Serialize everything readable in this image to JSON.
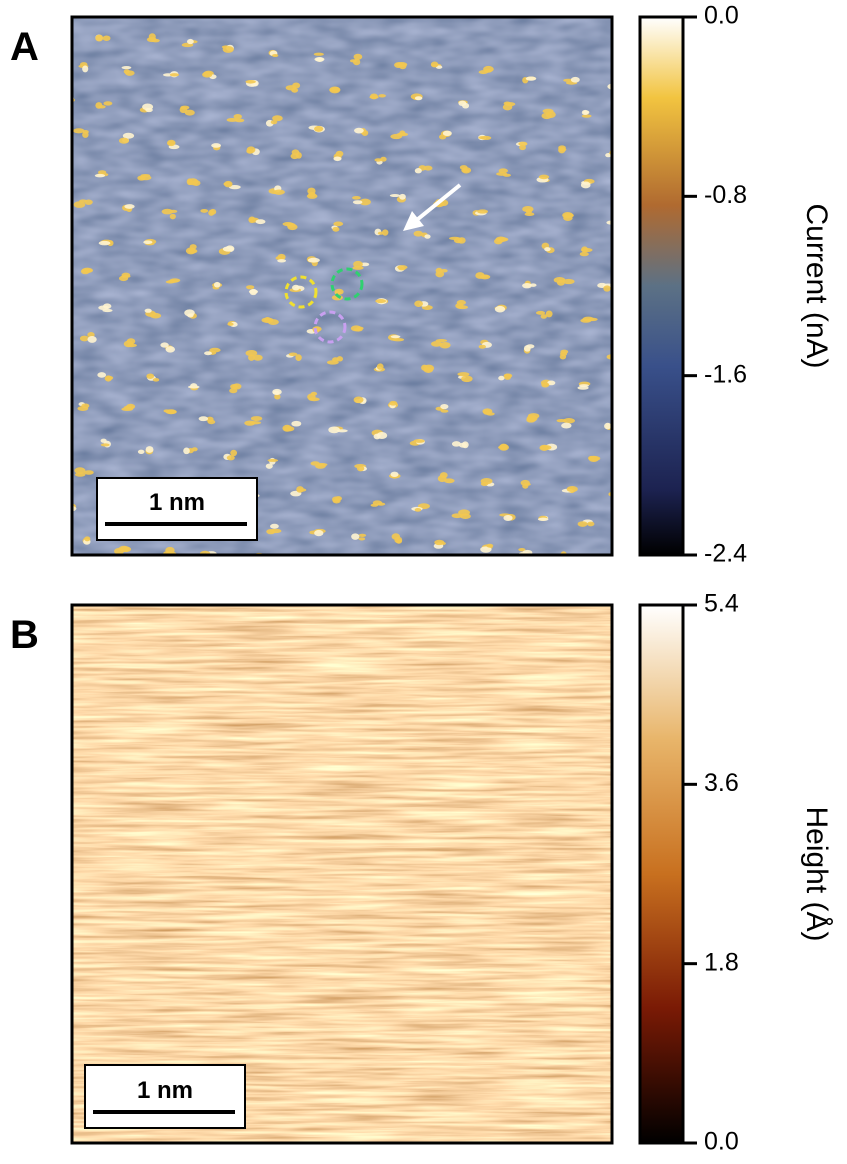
{
  "panels": [
    {
      "label": "A",
      "scale_bar": "1 nm",
      "colorbar": {
        "title": "Current (nA)",
        "lim": [
          -2.4,
          0.0
        ],
        "ticks": [
          {
            "value": 0.0,
            "label": "0.0"
          },
          {
            "value": -0.8,
            "label": "-0.8"
          },
          {
            "value": -1.6,
            "label": "-1.6"
          },
          {
            "value": -2.4,
            "label": "-2.4"
          }
        ]
      }
    },
    {
      "label": "B",
      "scale_bar": "1 nm",
      "colorbar": {
        "title": "Height (Å)",
        "lim": [
          0.0,
          5.4
        ],
        "ticks": [
          {
            "value": 5.4,
            "label": "5.4"
          },
          {
            "value": 3.6,
            "label": "3.6"
          },
          {
            "value": 1.8,
            "label": "1.8"
          },
          {
            "value": 0.0,
            "label": "0.0"
          }
        ]
      }
    }
  ]
}
